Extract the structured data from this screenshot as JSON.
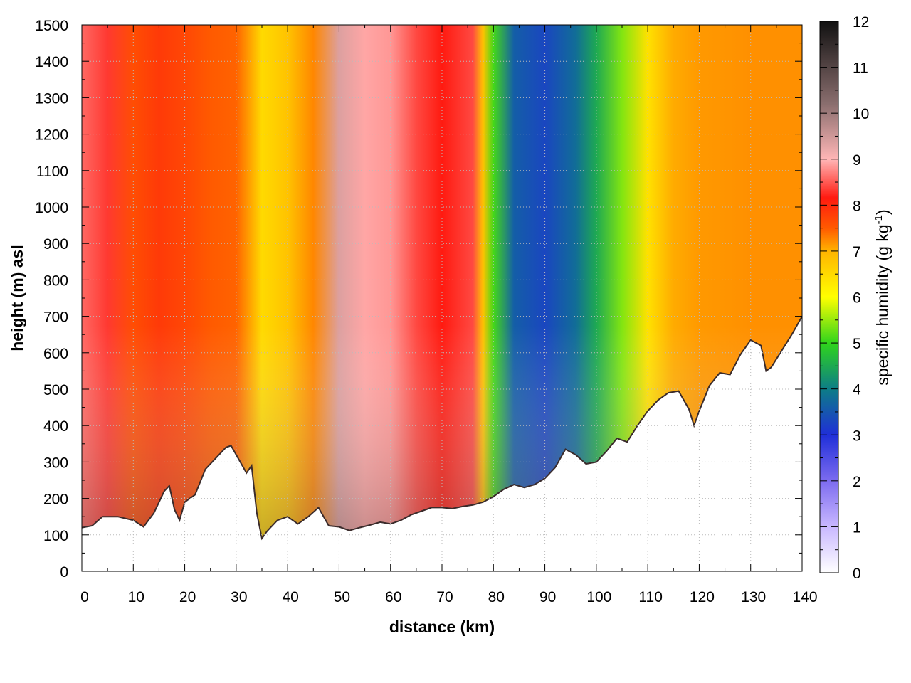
{
  "chart_data": {
    "type": "heatmap",
    "title": "",
    "xlabel": "distance (km)",
    "ylabel": "height (m) asl",
    "xlim": [
      0,
      140
    ],
    "ylim": [
      0,
      1500
    ],
    "x_ticks": [
      0,
      10,
      20,
      30,
      40,
      50,
      60,
      70,
      80,
      90,
      100,
      110,
      120,
      130,
      140
    ],
    "y_ticks": [
      0,
      100,
      200,
      300,
      400,
      500,
      600,
      700,
      800,
      900,
      1000,
      1100,
      1200,
      1300,
      1400,
      1500
    ],
    "grid": true,
    "colorbar": {
      "title": "specific humidity (g kg",
      "title_superscript": "-1",
      "title_suffix": ")",
      "range": [
        0,
        12
      ],
      "ticks": [
        0,
        1,
        2,
        3,
        4,
        5,
        6,
        7,
        8,
        9,
        10,
        11,
        12
      ],
      "colors": [
        "#ffffff",
        "#c9b8ff",
        "#7d6cf0",
        "#1f2fd8",
        "#0d7d87",
        "#2fd41c",
        "#ffff00",
        "#ffb400",
        "#ff5a00",
        "#ff1a10",
        "#ffb6b6",
        "#8a6e6e",
        "#111111"
      ]
    },
    "terrain_km_m": [
      [
        0,
        120
      ],
      [
        2,
        125
      ],
      [
        4,
        150
      ],
      [
        7,
        150
      ],
      [
        10,
        140
      ],
      [
        12,
        122
      ],
      [
        14,
        160
      ],
      [
        16,
        220
      ],
      [
        17,
        235
      ],
      [
        18,
        170
      ],
      [
        19,
        140
      ],
      [
        20,
        190
      ],
      [
        22,
        210
      ],
      [
        24,
        280
      ],
      [
        26,
        310
      ],
      [
        28,
        340
      ],
      [
        29,
        345
      ],
      [
        30,
        320
      ],
      [
        32,
        270
      ],
      [
        33,
        290
      ],
      [
        34,
        160
      ],
      [
        35,
        90
      ],
      [
        36,
        110
      ],
      [
        38,
        140
      ],
      [
        40,
        150
      ],
      [
        42,
        130
      ],
      [
        44,
        150
      ],
      [
        46,
        175
      ],
      [
        47,
        150
      ],
      [
        48,
        125
      ],
      [
        50,
        122
      ],
      [
        52,
        112
      ],
      [
        54,
        120
      ],
      [
        56,
        127
      ],
      [
        58,
        135
      ],
      [
        60,
        130
      ],
      [
        62,
        140
      ],
      [
        64,
        155
      ],
      [
        66,
        165
      ],
      [
        68,
        175
      ],
      [
        70,
        175
      ],
      [
        72,
        172
      ],
      [
        74,
        178
      ],
      [
        76,
        182
      ],
      [
        78,
        190
      ],
      [
        80,
        205
      ],
      [
        82,
        225
      ],
      [
        84,
        238
      ],
      [
        86,
        230
      ],
      [
        88,
        238
      ],
      [
        90,
        255
      ],
      [
        92,
        285
      ],
      [
        94,
        335
      ],
      [
        96,
        320
      ],
      [
        98,
        295
      ],
      [
        100,
        300
      ],
      [
        102,
        330
      ],
      [
        104,
        365
      ],
      [
        106,
        355
      ],
      [
        108,
        400
      ],
      [
        110,
        440
      ],
      [
        112,
        470
      ],
      [
        114,
        490
      ],
      [
        116,
        495
      ],
      [
        118,
        445
      ],
      [
        119,
        400
      ],
      [
        120,
        440
      ],
      [
        122,
        510
      ],
      [
        124,
        545
      ],
      [
        126,
        540
      ],
      [
        128,
        595
      ],
      [
        130,
        635
      ],
      [
        132,
        620
      ],
      [
        133,
        550
      ],
      [
        134,
        560
      ],
      [
        136,
        605
      ],
      [
        138,
        650
      ],
      [
        140,
        700
      ]
    ],
    "moisture_columns_km_gkg": [
      [
        0,
        9.5
      ],
      [
        5,
        9.2
      ],
      [
        10,
        8.2
      ],
      [
        15,
        8.5
      ],
      [
        20,
        8.3
      ],
      [
        25,
        8.0
      ],
      [
        30,
        7.9
      ],
      [
        35,
        6.5
      ],
      [
        40,
        6.8
      ],
      [
        45,
        7.5
      ],
      [
        50,
        10.3
      ],
      [
        55,
        9.9
      ],
      [
        60,
        9.8
      ],
      [
        65,
        9.3
      ],
      [
        70,
        9.0
      ],
      [
        76,
        9.3
      ],
      [
        78,
        6.8
      ],
      [
        80,
        5.1
      ],
      [
        84,
        3.6
      ],
      [
        90,
        3.3
      ],
      [
        96,
        3.8
      ],
      [
        100,
        4.5
      ],
      [
        105,
        5.4
      ],
      [
        110,
        6.4
      ],
      [
        115,
        7.1
      ],
      [
        120,
        7.3
      ],
      [
        130,
        7.4
      ],
      [
        140,
        7.4
      ]
    ]
  }
}
